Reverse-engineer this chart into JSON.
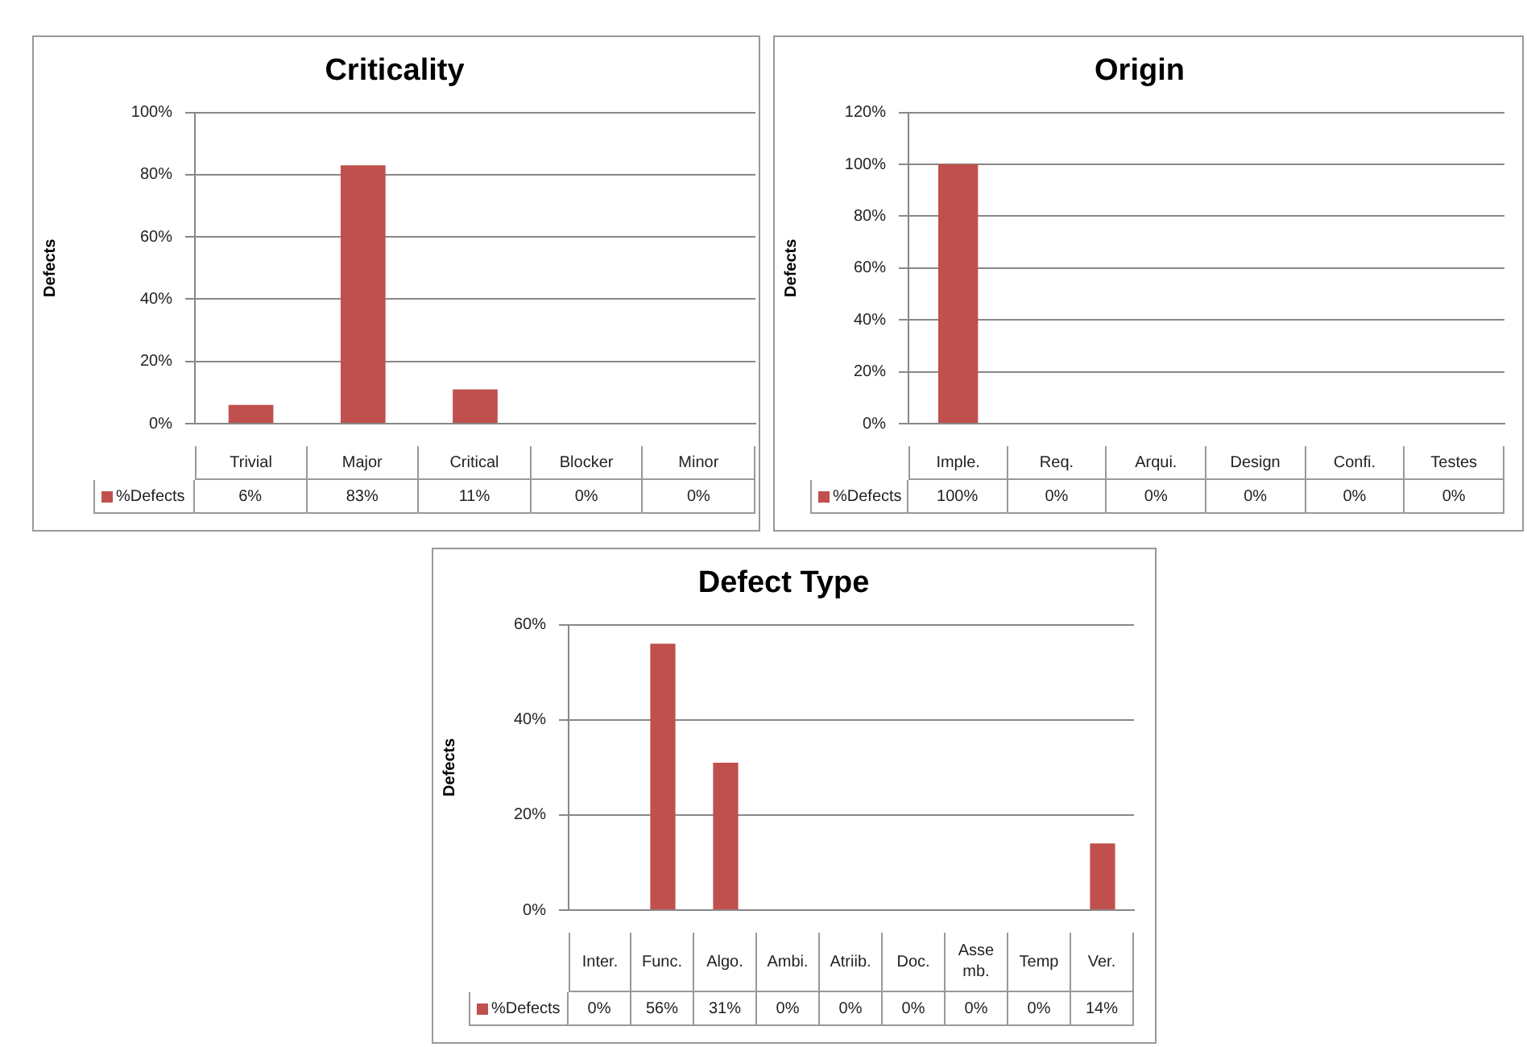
{
  "chart_data": [
    {
      "type": "bar",
      "title": "Criticality",
      "ylabel": "Defects",
      "categories": [
        "Trivial",
        "Major",
        "Critical",
        "Blocker",
        "Minor"
      ],
      "series": [
        {
          "name": "%Defects",
          "color": "#c0504d",
          "values": [
            6,
            83,
            11,
            0,
            0
          ],
          "value_labels": [
            "6%",
            "83%",
            "11%",
            "0%",
            "0%"
          ]
        }
      ],
      "ylim": [
        0,
        100
      ],
      "yticks": [
        {
          "value": 0,
          "label": "0%"
        },
        {
          "value": 20,
          "label": "20%"
        },
        {
          "value": 40,
          "label": "40%"
        },
        {
          "value": 60,
          "label": "60%"
        },
        {
          "value": 80,
          "label": "80%"
        },
        {
          "value": 100,
          "label": "100%"
        }
      ],
      "grid": "y",
      "legend": "bottom"
    },
    {
      "type": "bar",
      "title": "Origin",
      "ylabel": "Defects",
      "categories": [
        "Imple.",
        "Req.",
        "Arqui.",
        "Design",
        "Confi.",
        "Testes"
      ],
      "series": [
        {
          "name": "%Defects",
          "color": "#c0504d",
          "values": [
            100,
            0,
            0,
            0,
            0,
            0
          ],
          "value_labels": [
            "100%",
            "0%",
            "0%",
            "0%",
            "0%",
            "0%"
          ]
        }
      ],
      "ylim": [
        0,
        120
      ],
      "yticks": [
        {
          "value": 0,
          "label": "0%"
        },
        {
          "value": 20,
          "label": "20%"
        },
        {
          "value": 40,
          "label": "40%"
        },
        {
          "value": 60,
          "label": "60%"
        },
        {
          "value": 80,
          "label": "80%"
        },
        {
          "value": 100,
          "label": "100%"
        },
        {
          "value": 120,
          "label": "120%"
        }
      ],
      "grid": "y",
      "legend": "bottom"
    },
    {
      "type": "bar",
      "title": "Defect Type",
      "ylabel": "Defects",
      "categories": [
        "Inter.",
        "Func.",
        "Algo.",
        "Ambi.",
        "Atriib.",
        "Doc.",
        "Asse mb.",
        "Temp",
        "Ver."
      ],
      "series": [
        {
          "name": "%Defects",
          "color": "#c0504d",
          "values": [
            0,
            56,
            31,
            0,
            0,
            0,
            0,
            0,
            14
          ],
          "value_labels": [
            "0%",
            "56%",
            "31%",
            "0%",
            "0%",
            "0%",
            "0%",
            "0%",
            "14%"
          ]
        }
      ],
      "ylim": [
        0,
        60
      ],
      "yticks": [
        {
          "value": 0,
          "label": "0%"
        },
        {
          "value": 20,
          "label": "20%"
        },
        {
          "value": 40,
          "label": "40%"
        },
        {
          "value": 60,
          "label": "60%"
        }
      ],
      "grid": "y",
      "legend": "bottom"
    }
  ]
}
